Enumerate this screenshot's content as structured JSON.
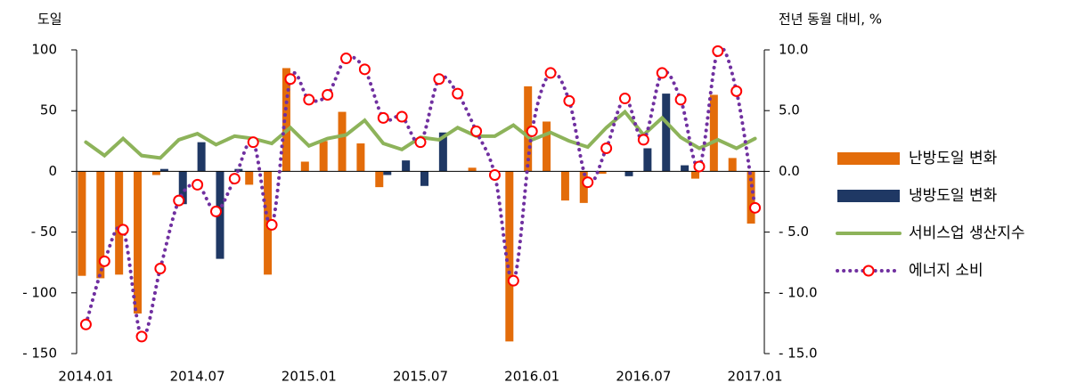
{
  "chart_data": {
    "type": "bar",
    "y_title": "도일",
    "y2_title": "전년 동월 대비, %",
    "categories": [
      "2014.01",
      null,
      null,
      null,
      null,
      null,
      "2014.07",
      null,
      null,
      null,
      null,
      null,
      "2015.01",
      null,
      null,
      null,
      null,
      null,
      "2015.07",
      null,
      null,
      null,
      null,
      null,
      "2016.01",
      null,
      null,
      null,
      null,
      null,
      "2016.07",
      null,
      null,
      null,
      null,
      null,
      "2017.01"
    ],
    "ylim": [
      -150,
      100
    ],
    "yticks": [
      {
        "value": 100,
        "label": "100"
      },
      50,
      0,
      {
        "value": -50,
        "label": "- 50"
      },
      {
        "value": -100,
        "label": "- 100"
      },
      {
        "value": -150,
        "label": "- 150"
      }
    ],
    "y2lim": [
      -15,
      10
    ],
    "y2ticks": [
      {
        "value": 10,
        "label": "10.0"
      },
      {
        "value": 5,
        "label": "5.0"
      },
      {
        "value": 0,
        "label": "0.0"
      },
      {
        "value": -5,
        "label": "- 5.0"
      },
      {
        "value": -10,
        "label": "- 10.0"
      },
      {
        "value": -15,
        "label": "- 15.0"
      }
    ],
    "legend": "right",
    "series": [
      {
        "name": "난방도일 변화",
        "type": "bar",
        "color": "#e36c0a",
        "axis": "y",
        "values": [
          -86,
          -88,
          -85,
          -117,
          -3,
          0,
          0,
          0,
          0,
          -11,
          -85,
          85,
          8,
          25,
          49,
          23,
          -13,
          0,
          0,
          0,
          0,
          3,
          0,
          -140,
          70,
          41,
          -24,
          -26,
          -2,
          0,
          0,
          0,
          0,
          -6,
          63,
          11,
          -43
        ]
      },
      {
        "name": "냉방도일 변화",
        "type": "bar",
        "color": "#1f3864",
        "axis": "y",
        "values": [
          0,
          0,
          0,
          0,
          2,
          -27,
          24,
          -72,
          2,
          0,
          0,
          0,
          0,
          0,
          0,
          0,
          -3,
          9,
          -12,
          32,
          0,
          0,
          0,
          0,
          0,
          0,
          0,
          0,
          0,
          -4,
          19,
          64,
          5,
          0,
          0,
          0,
          0
        ]
      },
      {
        "name": "서비스업 생산지수",
        "type": "line",
        "color": "#8db35a",
        "axis": "y2",
        "values": [
          2.4,
          1.3,
          2.7,
          1.3,
          1.1,
          2.6,
          3.1,
          2.2,
          2.9,
          2.7,
          2.3,
          3.6,
          2.1,
          2.7,
          3.0,
          4.2,
          2.3,
          1.8,
          2.8,
          2.6,
          3.6,
          2.9,
          2.9,
          3.8,
          2.6,
          3.2,
          2.5,
          2.0,
          3.6,
          4.9,
          3.0,
          4.4,
          2.8,
          1.9,
          2.6,
          1.9,
          2.7
        ]
      },
      {
        "name": "에너지 소비",
        "type": "line",
        "color": "#7030a0",
        "marker_color": "#ff0000",
        "dotted": true,
        "marker": "circle",
        "axis": "y2",
        "values": [
          -12.6,
          -7.4,
          -4.8,
          -13.6,
          -8.0,
          -2.4,
          -1.1,
          -3.3,
          -0.6,
          2.4,
          -4.4,
          7.6,
          5.9,
          6.3,
          9.3,
          8.4,
          4.4,
          4.5,
          2.4,
          7.6,
          6.4,
          3.3,
          -0.3,
          -9.0,
          3.3,
          8.1,
          5.8,
          -0.9,
          1.9,
          6.0,
          2.6,
          8.1,
          5.9,
          0.4,
          9.9,
          6.6,
          -3.0
        ]
      }
    ]
  }
}
